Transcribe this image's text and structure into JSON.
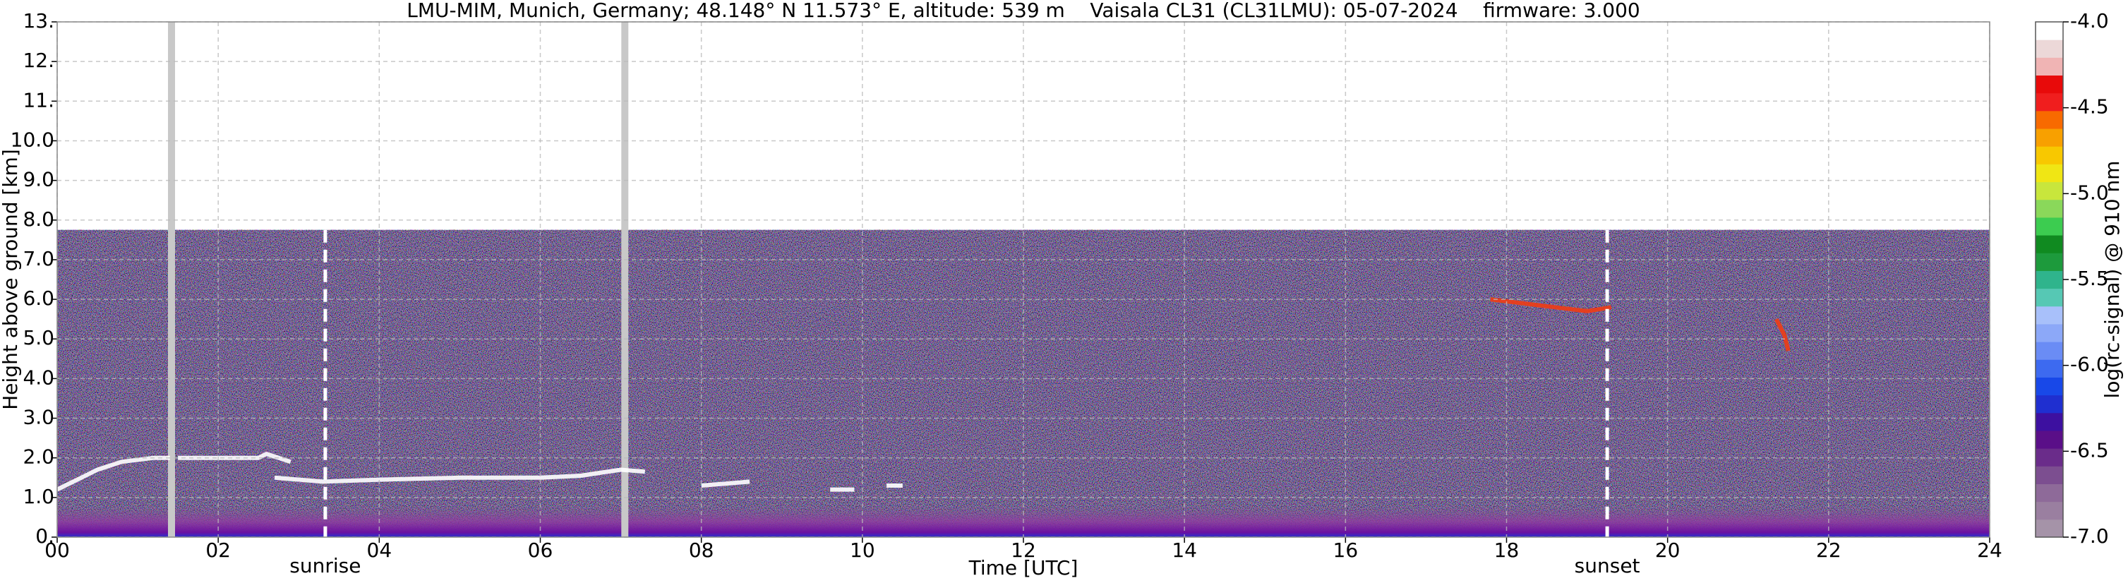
{
  "chart_data": {
    "type": "ceilometer",
    "title": "LMU-MIM, Munich, Germany; 48.148° N 11.573° E, altitude: 539 m    Vaisala CL31 (CL31LMU): 05-07-2024    firmware: 3.000",
    "x_label": "Time [UTC]",
    "y_label": "Height above ground [km]",
    "xlim": [
      0,
      24
    ],
    "xticks": [
      {
        "value": 0,
        "label": "00"
      },
      {
        "value": 2,
        "label": "02"
      },
      {
        "value": 4,
        "label": "04"
      },
      {
        "value": 6,
        "label": "06"
      },
      {
        "value": 8,
        "label": "08"
      },
      10,
      12,
      14,
      16,
      18,
      20,
      22,
      24
    ],
    "ylim": [
      0,
      13
    ],
    "yticks": [
      {
        "value": 0,
        "label": "0."
      },
      {
        "value": 1,
        "label": "1.0"
      },
      {
        "value": 2,
        "label": "2.0"
      },
      {
        "value": 3,
        "label": "3.0"
      },
      {
        "value": 4,
        "label": "4.0"
      },
      {
        "value": 5,
        "label": "5.0"
      },
      {
        "value": 6,
        "label": "6.0"
      },
      {
        "value": 7,
        "label": "7.0"
      },
      {
        "value": 8,
        "label": "8.0"
      },
      {
        "value": 9,
        "label": "9.0"
      },
      {
        "value": 10,
        "label": "10.0"
      },
      {
        "value": 11,
        "label": "11."
      },
      {
        "value": 12,
        "label": "12."
      },
      {
        "value": 13,
        "label": "13."
      }
    ],
    "grid": true,
    "signal_top": 7.75,
    "surface_layer_top": 0.8,
    "gaps": [
      1.42,
      7.05
    ],
    "annotations": [
      {
        "x": 3.33,
        "label": "sunrise"
      },
      {
        "x": 19.25,
        "label": "sunset"
      }
    ],
    "layers": [
      {
        "color": "#ffffff",
        "x": [
          0,
          0.3,
          0.5,
          0.8,
          1.2,
          1.4,
          null,
          1.5,
          2.0,
          2.5,
          2.6,
          2.9,
          null,
          2.7,
          3.3,
          4.0,
          5.0,
          6.0,
          6.5,
          7.0,
          7.3,
          null,
          8.0,
          8.3,
          8.6,
          null,
          9.6,
          9.9,
          null,
          10.3,
          10.5
        ],
        "y": [
          1.2,
          1.5,
          1.7,
          1.9,
          2.0,
          2.0,
          null,
          2.0,
          2.0,
          2.0,
          2.1,
          1.9,
          null,
          1.5,
          1.4,
          1.45,
          1.5,
          1.5,
          1.55,
          1.7,
          1.65,
          null,
          1.3,
          1.35,
          1.4,
          null,
          1.2,
          1.2,
          null,
          1.3,
          1.3
        ]
      },
      {
        "color": "#f03c14",
        "x": [
          17.8,
          18.2,
          18.6,
          19.0,
          19.3,
          null,
          21.35,
          21.45,
          21.5
        ],
        "y": [
          6.0,
          5.9,
          5.8,
          5.7,
          5.8,
          null,
          5.5,
          5.1,
          4.7
        ]
      }
    ],
    "colorbar": {
      "label": "log(rc-signal) @ 910 nm",
      "lim": [
        -7,
        -4
      ],
      "ticks": [
        {
          "value": -4,
          "label": "-4.0"
        },
        {
          "value": -4.5,
          "label": "-4.5"
        },
        {
          "value": -5,
          "label": "-5.0"
        },
        {
          "value": -5.5,
          "label": "-5.5"
        },
        {
          "value": -6,
          "label": "-6.0"
        },
        {
          "value": -6.5,
          "label": "-6.5"
        },
        {
          "value": -7,
          "label": "-7.0"
        }
      ],
      "colors": [
        "#a593a8",
        "#9a7fa0",
        "#8e6a99",
        "#7c4e90",
        "#6a2c8a",
        "#5a0f88",
        "#3d10a0",
        "#1f2fd0",
        "#1848e8",
        "#3d6af0",
        "#6a8cf5",
        "#8ca8f8",
        "#a8c0fa",
        "#56c8b4",
        "#2fb48c",
        "#1d9a3c",
        "#108a20",
        "#3ccc50",
        "#8ad85a",
        "#c8e63c",
        "#f0e614",
        "#f8c800",
        "#f8a000",
        "#f86a00",
        "#f01e1e",
        "#e80a0a",
        "#f0b4b4",
        "#ecd8d8",
        "#ffffff"
      ]
    }
  }
}
